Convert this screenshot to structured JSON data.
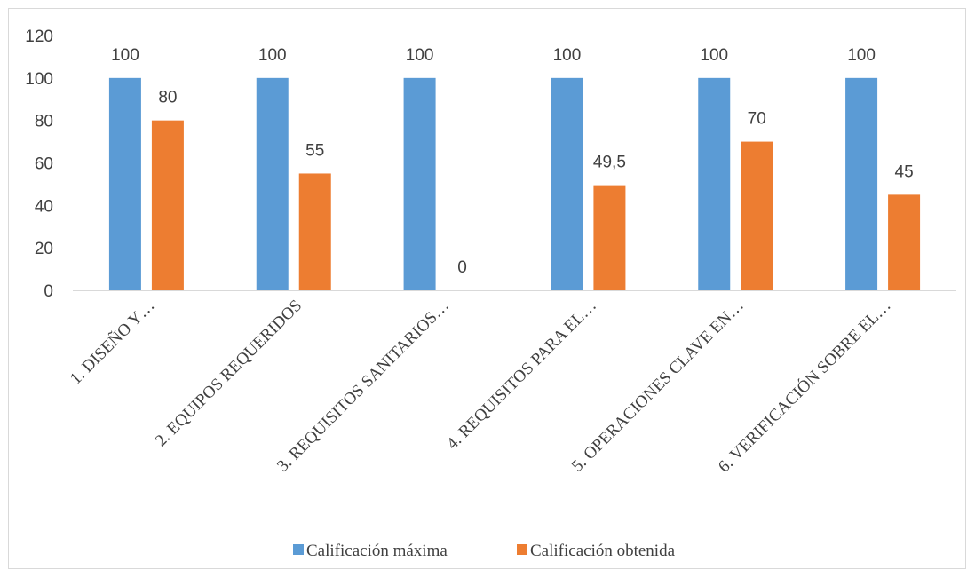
{
  "chart_data": {
    "type": "bar",
    "categories": [
      "1. DISEÑO Y…",
      "2. EQUIPOS REQUERIDOS",
      "3. REQUISITOS SANITARIOS…",
      "4. REQUISITOS PARA EL…",
      "5. OPERACIONES CLAVE EN…",
      "6. VERIFICACIÓN SOBRE EL…"
    ],
    "series": [
      {
        "name": "Calificación máxima",
        "color": "#5b9bd5",
        "values": [
          100,
          100,
          100,
          100,
          100,
          100
        ],
        "labels": [
          "100",
          "100",
          "100",
          "100",
          "100",
          "100"
        ]
      },
      {
        "name": "Calificación obtenida",
        "color": "#ed7d31",
        "values": [
          80,
          55,
          0,
          49.5,
          70,
          45
        ],
        "labels": [
          "80",
          "55",
          "0",
          "49,5",
          "70",
          "45"
        ]
      }
    ],
    "yticks": [
      "0",
      "20",
      "40",
      "60",
      "80",
      "100",
      "120"
    ],
    "ylim": [
      0,
      120
    ],
    "grid": false,
    "legend_position": "bottom",
    "title": "",
    "xlabel": "",
    "ylabel": ""
  }
}
